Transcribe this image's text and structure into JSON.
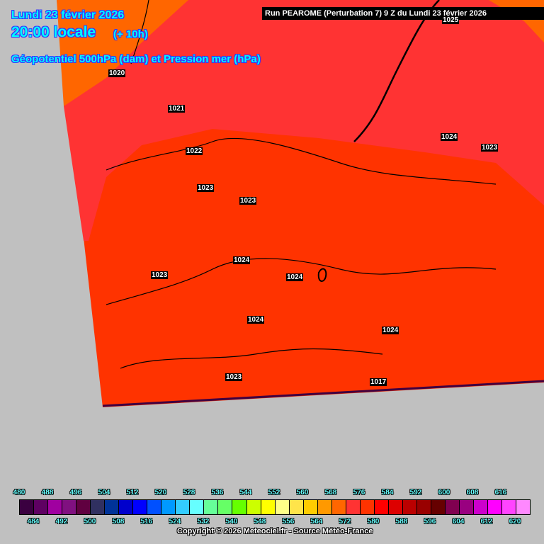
{
  "header": {
    "date": "Lundi 23 février 2026",
    "time": "20:00 locale",
    "lead": "(+ 10h)",
    "parameter": "Géopotentiel 500hPa (dam) et Pression mer (hPa)",
    "run": "Run PEAROME (Perturbation 7) 9 Z du Lundi 23 février 2026"
  },
  "map": {
    "background_color": "#c0c0c0",
    "field_colors": {
      "568": "#ff6600",
      "572": "#ff3333",
      "576": "#ff3300"
    },
    "pressure_labels": [
      "1025",
      "1020",
      "1021",
      "1022",
      "1023",
      "1023",
      "1024",
      "1023",
      "1023",
      "1024",
      "1024",
      "1024",
      "1023",
      "1017",
      "1024"
    ]
  },
  "legend": {
    "colors": [
      "#3a0040",
      "#5e0062",
      "#a000a0",
      "#801080",
      "#600040",
      "#303060",
      "#003399",
      "#0000cc",
      "#0000ff",
      "#0050ff",
      "#0099ff",
      "#33ccff",
      "#66ffff",
      "#66ff99",
      "#66ff66",
      "#66ff00",
      "#ccff00",
      "#ffff00",
      "#ffff88",
      "#ffe44a",
      "#ffcc00",
      "#ff9900",
      "#ff6600",
      "#ff3333",
      "#ff3300",
      "#ff0000",
      "#dd0000",
      "#bb0000",
      "#990000",
      "#660000",
      "#800050",
      "#990080",
      "#cc00cc",
      "#ff00ff",
      "#ff44ff",
      "#ff88ff"
    ],
    "top_labels": [
      "480",
      "488",
      "496",
      "504",
      "512",
      "520",
      "528",
      "536",
      "544",
      "552",
      "560",
      "568",
      "576",
      "584",
      "592",
      "600",
      "608",
      "616"
    ],
    "bottom_labels": [
      "484",
      "492",
      "500",
      "508",
      "516",
      "524",
      "532",
      "540",
      "548",
      "556",
      "564",
      "572",
      "580",
      "588",
      "596",
      "604",
      "612",
      "620"
    ]
  },
  "copyright": "Copyright © 2026 Meteociel.fr - Source Météo-France"
}
